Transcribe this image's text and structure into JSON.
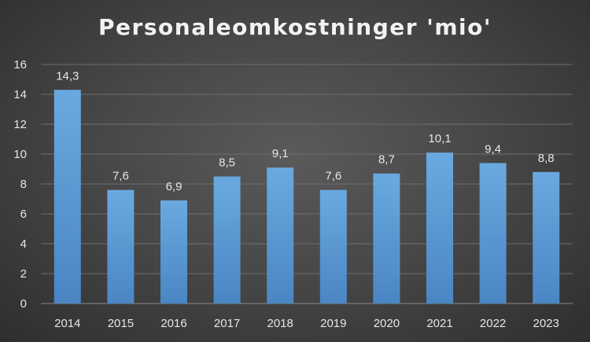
{
  "chart_data": {
    "type": "bar",
    "title": "Personaleomkostninger 'mio'",
    "categories": [
      "2014",
      "2015",
      "2016",
      "2017",
      "2018",
      "2019",
      "2020",
      "2021",
      "2022",
      "2023"
    ],
    "values": [
      14.3,
      7.6,
      6.9,
      8.5,
      9.1,
      7.6,
      8.7,
      10.1,
      9.4,
      8.8
    ],
    "data_labels": [
      "14,3",
      "7,6",
      "6,9",
      "8,5",
      "9,1",
      "7,6",
      "8,7",
      "10,1",
      "9,4",
      "8,8"
    ],
    "yticks": [
      "0",
      "2",
      "4",
      "6",
      "8",
      "10",
      "12",
      "14",
      "16"
    ],
    "ylim": [
      0,
      16
    ],
    "xlabel": "",
    "ylabel": "",
    "grid": true,
    "legend": "none",
    "colors": {
      "bar": "#5b9bd5",
      "grid": "#6e6e6e",
      "text": "#e6e6e6"
    }
  }
}
